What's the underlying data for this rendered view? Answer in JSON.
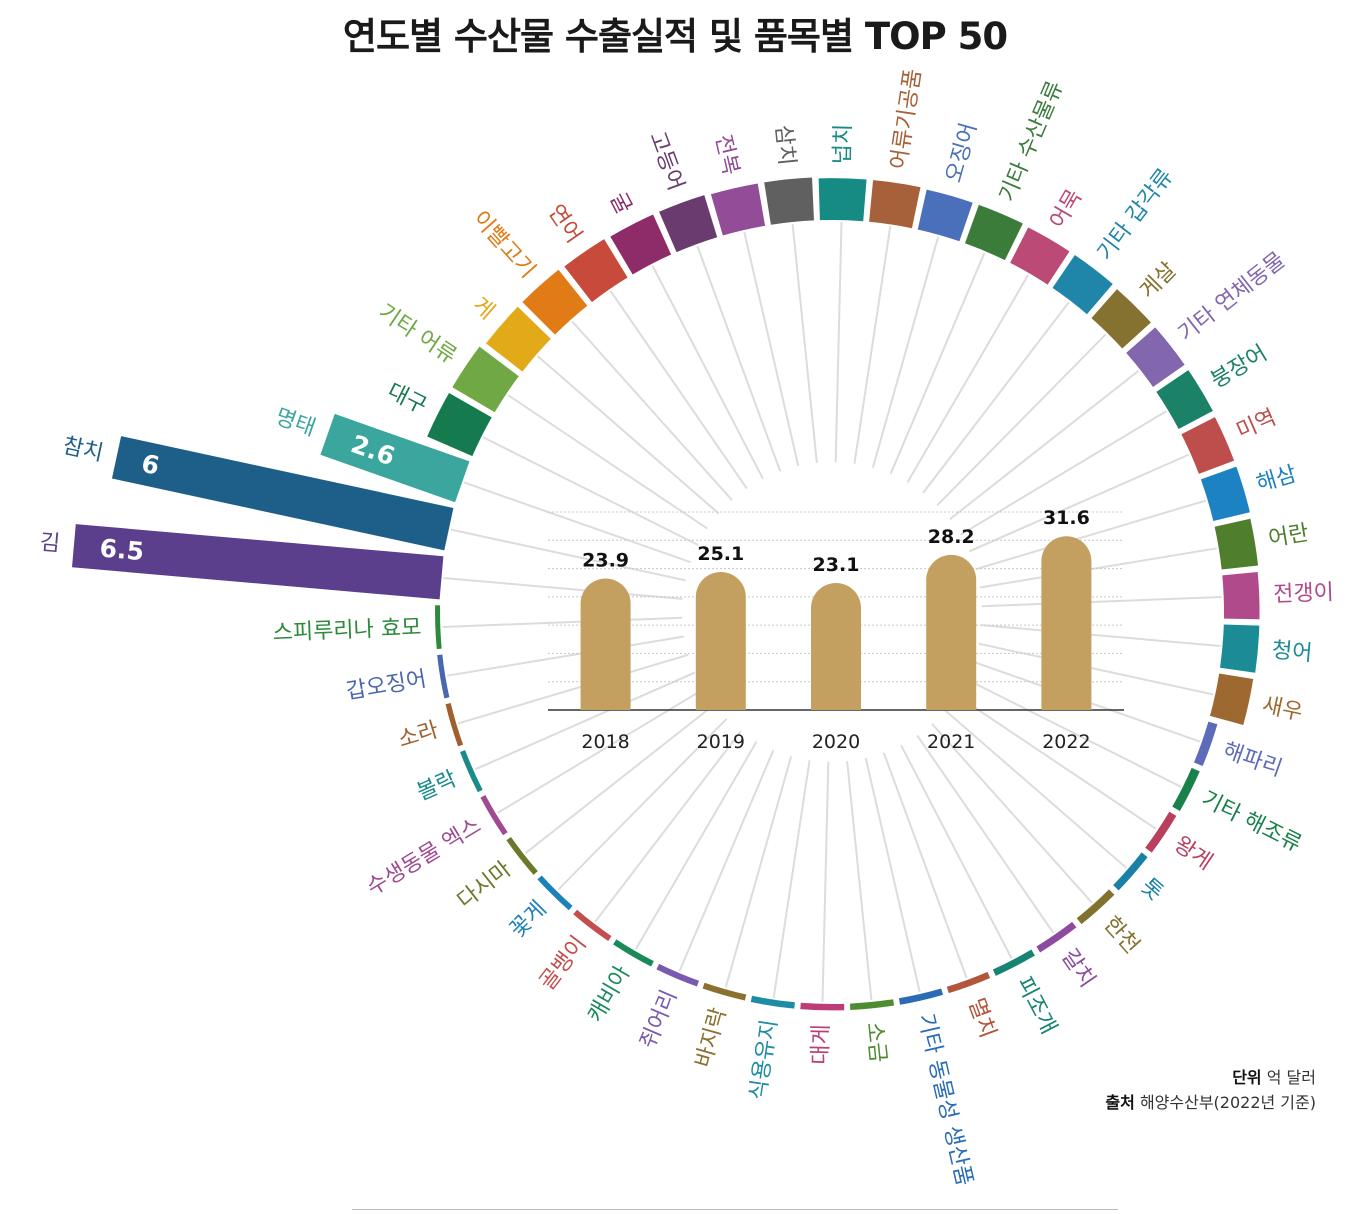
{
  "title": "연도별 수산물 수출실적 및 품목별 TOP 50",
  "unit_label": "단위",
  "unit_value": "억 달러",
  "source_label": "출처",
  "source_value": "해양수산부(2022년 기준)",
  "chart_data": [
    {
      "type": "bar",
      "categories": [
        "2018",
        "2019",
        "2020",
        "2021",
        "2022"
      ],
      "values": [
        23.9,
        25.1,
        23.1,
        28.2,
        31.6
      ],
      "ylim": [
        0,
        36
      ],
      "grid": true,
      "color": "#c4a060"
    },
    {
      "type": "bar",
      "layout": "radial",
      "categories": [
        "김",
        "참치",
        "명태",
        "대구",
        "기타 어류",
        "게",
        "이빨고기",
        "연어",
        "굴",
        "고등어",
        "전복",
        "삼치",
        "넙치",
        "어류기공품",
        "오징어",
        "기타 수산물류",
        "어묵",
        "기타 갑각류",
        "게살",
        "기타 연체동물",
        "붕장어",
        "미역",
        "해삼",
        "어란",
        "전갱이",
        "청어",
        "새우",
        "해파리",
        "기타 해조류",
        "왕게",
        "톳",
        "한천",
        "갈치",
        "피조개",
        "멸치",
        "기타 동물성 생산품",
        "소금",
        "대게",
        "식용유지",
        "바지락",
        "쥐어리",
        "캐비아",
        "골뱅이",
        "꽃게",
        "다시마",
        "수생동물 엑스",
        "볼락",
        "소라",
        "갑오징어",
        "스피루리나 효모"
      ],
      "values": [
        6.5,
        6.0,
        2.6,
        1.2,
        1.2,
        1.05,
        1.05,
        1.0,
        0.95,
        0.95,
        0.9,
        0.9,
        0.85,
        0.85,
        0.8,
        0.8,
        0.75,
        0.75,
        0.7,
        0.7,
        0.7,
        0.65,
        0.65,
        0.6,
        0.55,
        0.55,
        0.5,
        0.45,
        0.4,
        0.35,
        0.3,
        0.3,
        0.25,
        0.25,
        0.22,
        0.22,
        0.2,
        0.2,
        0.2,
        0.18,
        0.18,
        0.17,
        0.16,
        0.15,
        0.14,
        0.13,
        0.12,
        0.11,
        0.1,
        0.08
      ],
      "data_labels": {
        "김": "6.5",
        "참치": "6",
        "명태": "2.6"
      },
      "colors": [
        "#5b3f8c",
        "#1e5f8a",
        "#3aa69e",
        "#157a4e",
        "#6fa845",
        "#e2a918",
        "#e07b15",
        "#c74a3a",
        "#8e2c69",
        "#6a3b6e",
        "#934c97",
        "#606060",
        "#158b84",
        "#a7613a",
        "#4b70bb",
        "#3b7c3b",
        "#bb4a76",
        "#1f86a9",
        "#857230",
        "#8267af",
        "#1c8267",
        "#bd4e4c",
        "#1c82c1",
        "#4f7f2d",
        "#b04a8b",
        "#1b8b95",
        "#9d6930",
        "#5d6bb8",
        "#18824a",
        "#ba3e5e",
        "#1980a8",
        "#81722f",
        "#8e4a9f",
        "#178375",
        "#b3553a",
        "#2a6bb6",
        "#4d8c30",
        "#bb3f77",
        "#1f8ca6",
        "#8a7130",
        "#7a5ab0",
        "#1a8a5a",
        "#c44e4e",
        "#1c82b8",
        "#6a7a2a",
        "#a04a90",
        "#1b8a8a",
        "#a0602e",
        "#4a66b0",
        "#2d8a3a"
      ]
    }
  ]
}
